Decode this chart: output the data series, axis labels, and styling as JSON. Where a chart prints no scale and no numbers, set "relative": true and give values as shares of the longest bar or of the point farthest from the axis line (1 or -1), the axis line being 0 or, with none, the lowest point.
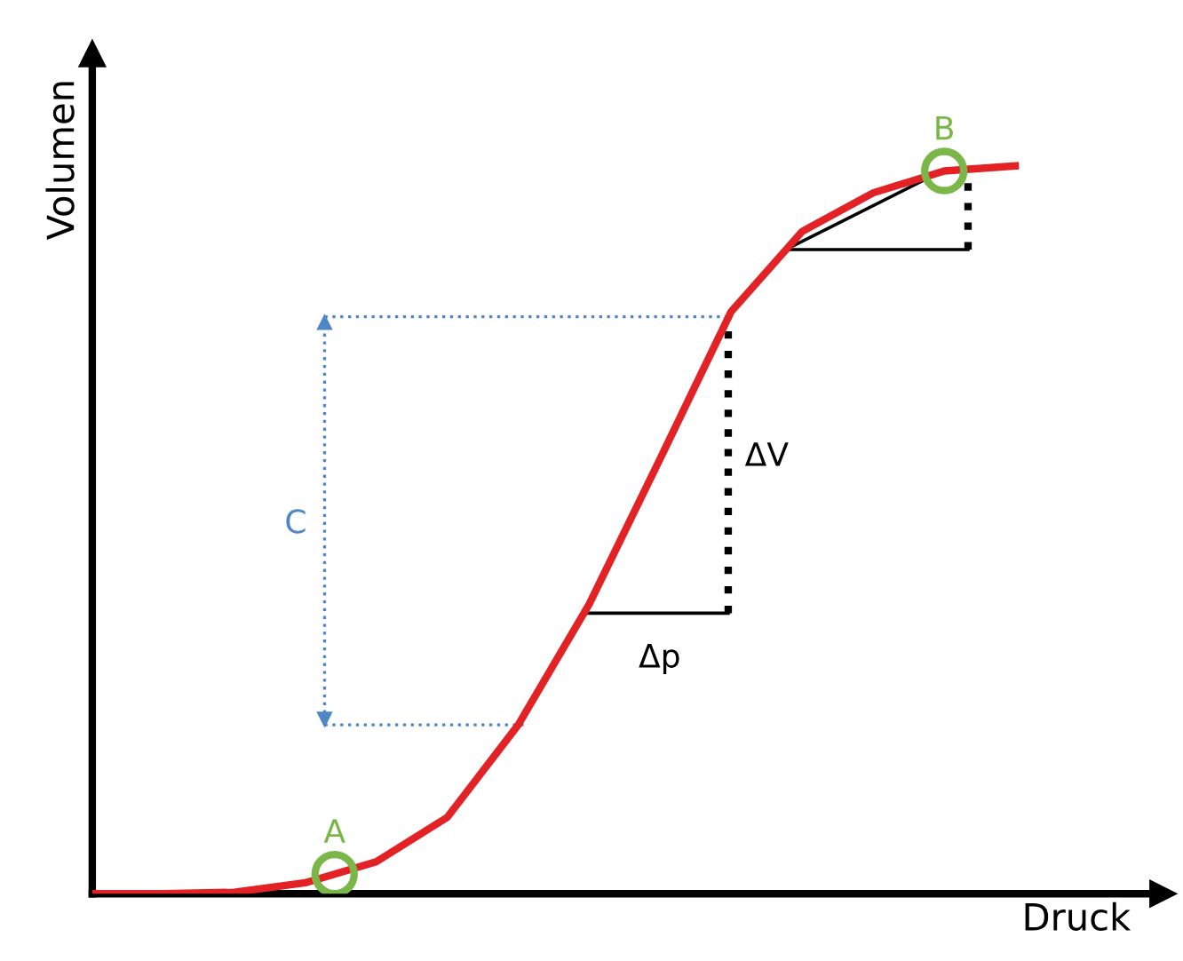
{
  "chart_data": {
    "type": "line",
    "relative": true,
    "xlabel": "Druck",
    "ylabel": "Volumen",
    "categories": [
      null,
      null,
      null,
      null,
      null,
      null,
      null,
      null,
      null,
      null,
      null,
      null,
      null,
      null
    ],
    "series": [
      {
        "color": "#e32226",
        "values": [
          0,
          0,
          0.002,
          0.015,
          0.044,
          0.105,
          0.232,
          0.398,
          0.598,
          0.8,
          0.91,
          0.963,
          0.993,
          1
        ]
      }
    ],
    "annotations": [
      {
        "text": "A",
        "y": 0.027
      },
      {
        "text": "B",
        "y": 0.993
      },
      "C",
      "ΔV",
      "Δp"
    ]
  }
}
